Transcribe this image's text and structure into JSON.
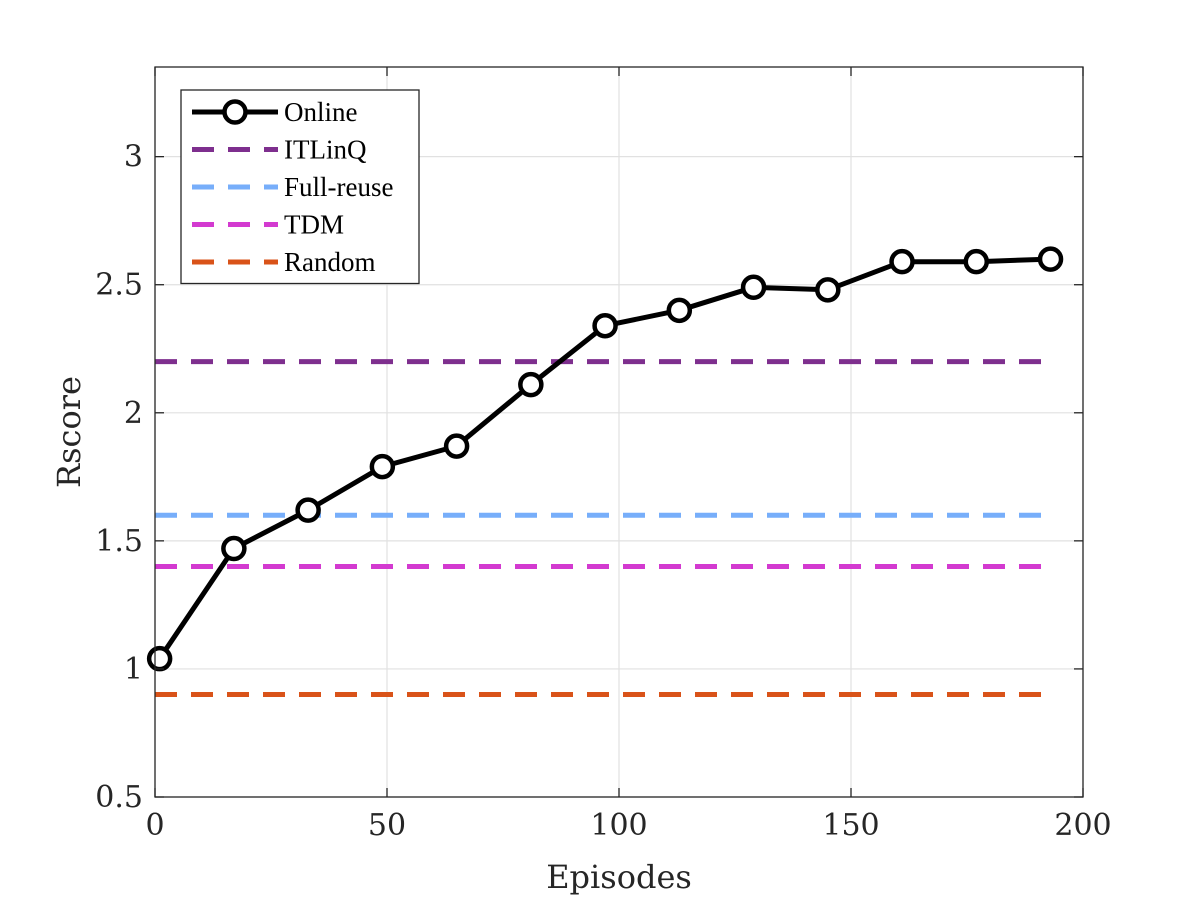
{
  "chart_data": {
    "type": "line",
    "xlabel": "Episodes",
    "ylabel": "Rscore",
    "xlim": [
      0,
      200
    ],
    "ylim": [
      0.5,
      3.35
    ],
    "xticks": [
      0,
      50,
      100,
      150,
      200
    ],
    "yticks": [
      0.5,
      1,
      1.5,
      2,
      2.5,
      3
    ],
    "xtick_labels": [
      "0",
      "50",
      "100",
      "150",
      "200"
    ],
    "ytick_labels": [
      "0.5",
      "1",
      "1.5",
      "2",
      "2.5",
      "3"
    ],
    "grid": true,
    "legend_position": "top-left",
    "series": [
      {
        "name": "Online",
        "style": "solid-circle-markers",
        "color": "#000000",
        "x": [
          1,
          17,
          33,
          49,
          65,
          81,
          97,
          113,
          129,
          145,
          161,
          177,
          193
        ],
        "values": [
          1.04,
          1.47,
          1.62,
          1.79,
          1.87,
          2.11,
          2.34,
          2.4,
          2.49,
          2.48,
          2.59,
          2.59,
          2.6
        ]
      },
      {
        "name": "ITLinQ",
        "style": "dashed",
        "color": "#7E2F8E",
        "x": [
          0,
          192
        ],
        "values": [
          2.2,
          2.2
        ]
      },
      {
        "name": "Full-reuse",
        "style": "dashed",
        "color": "#77AEFA",
        "x": [
          0,
          192
        ],
        "values": [
          1.6,
          1.6
        ]
      },
      {
        "name": "TDM",
        "style": "dashed",
        "color": "#D33AD0",
        "x": [
          0,
          192
        ],
        "values": [
          1.4,
          1.4
        ]
      },
      {
        "name": "Random",
        "style": "dashed",
        "color": "#D95319",
        "x": [
          0,
          192
        ],
        "values": [
          0.9,
          0.9
        ]
      }
    ]
  }
}
